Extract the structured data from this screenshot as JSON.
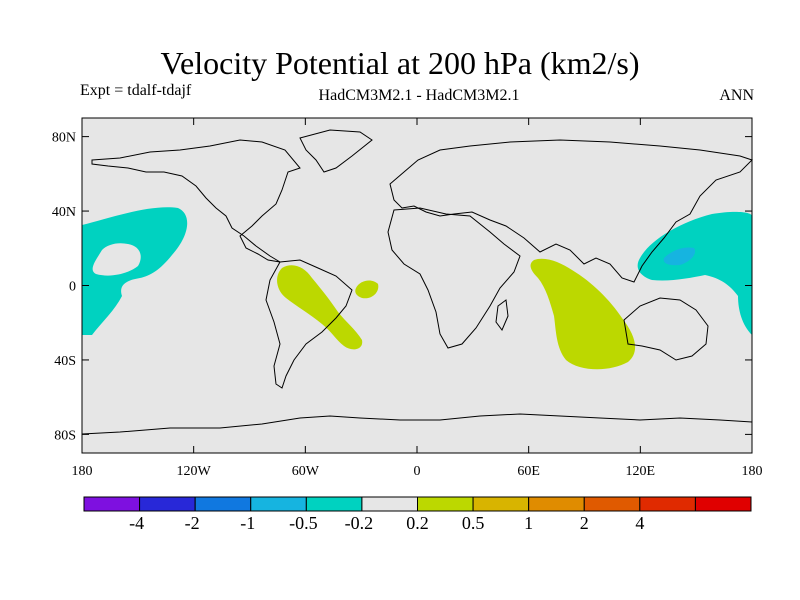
{
  "title": "Velocity Potential at 200 hPa (km2/s)",
  "subtitle_left": "Expt = tdalf-tdajf",
  "subtitle_center": "HadCM3M2.1 - HadCM3M2.1",
  "subtitle_right": "ANN",
  "map": {
    "projection": "cylindrical-equidistant",
    "lon_range": [
      -180,
      180
    ],
    "lat_range": [
      -90,
      90
    ],
    "x_ticks": [
      {
        "lon": -180,
        "label": "180"
      },
      {
        "lon": -120,
        "label": "120W"
      },
      {
        "lon": -60,
        "label": "60W"
      },
      {
        "lon": 0,
        "label": "0"
      },
      {
        "lon": 60,
        "label": "60E"
      },
      {
        "lon": 120,
        "label": "120E"
      },
      {
        "lon": 180,
        "label": "180"
      }
    ],
    "y_ticks": [
      {
        "lat": 80,
        "label": "80N"
      },
      {
        "lat": 40,
        "label": "40N"
      },
      {
        "lat": 0,
        "label": "0"
      },
      {
        "lat": -40,
        "label": "40S"
      },
      {
        "lat": -80,
        "label": "80S"
      }
    ],
    "background_color": "#e6e6e6",
    "regions": [
      {
        "name": "negative-region-north-pacific",
        "range": "-0.5 to -0.2",
        "color": "#00d2c0"
      },
      {
        "name": "negative-region-west-pacific",
        "range": "-0.5 to -0.2",
        "color": "#00d2c0"
      },
      {
        "name": "negative-core-west-pacific",
        "range": "-1 to -0.5",
        "color": "#16b4e0"
      },
      {
        "name": "positive-region-south-america",
        "range": "0.2 to 0.5",
        "color": "#bcd800"
      },
      {
        "name": "positive-region-atlantic",
        "range": "0.2 to 0.5",
        "color": "#bcd800"
      },
      {
        "name": "positive-region-indian-ocean",
        "range": "0.2 to 0.5",
        "color": "#bcd800"
      }
    ]
  },
  "colorbar": {
    "colors": [
      "#7e10e0",
      "#2828d8",
      "#1078e0",
      "#16b4e0",
      "#00d2c0",
      "#e6e6e6",
      "#bcd800",
      "#d8b400",
      "#e08c00",
      "#e05a00",
      "#e02a00",
      "#e00000"
    ],
    "labels": [
      "-4",
      "-2",
      "-1",
      "-0.5",
      "-0.2",
      "0.2",
      "0.5",
      "1",
      "2",
      "4"
    ]
  }
}
